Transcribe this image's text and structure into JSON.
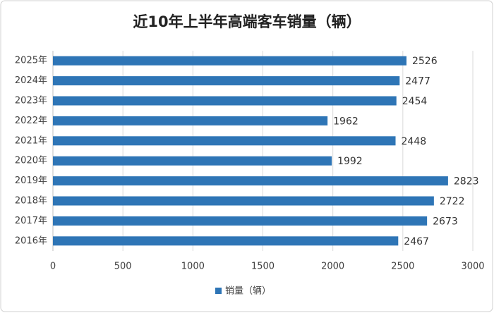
{
  "chart_data": {
    "type": "bar",
    "orientation": "horizontal",
    "title": "近10年上半年高端客车销量（辆）",
    "categories": [
      "2025年",
      "2024年",
      "2023年",
      "2022年",
      "2021年",
      "2020年",
      "2019年",
      "2018年",
      "2017年",
      "2016年"
    ],
    "series": [
      {
        "name": "销量（辆）",
        "color": "#2e75b6",
        "values": [
          2526,
          2477,
          2454,
          1962,
          2448,
          1992,
          2823,
          2722,
          2673,
          2467
        ]
      }
    ],
    "xlim": [
      0,
      3000
    ],
    "xticks": [
      0,
      500,
      1000,
      1500,
      2000,
      2500,
      3000
    ],
    "grid": true,
    "legend": "bottom"
  }
}
